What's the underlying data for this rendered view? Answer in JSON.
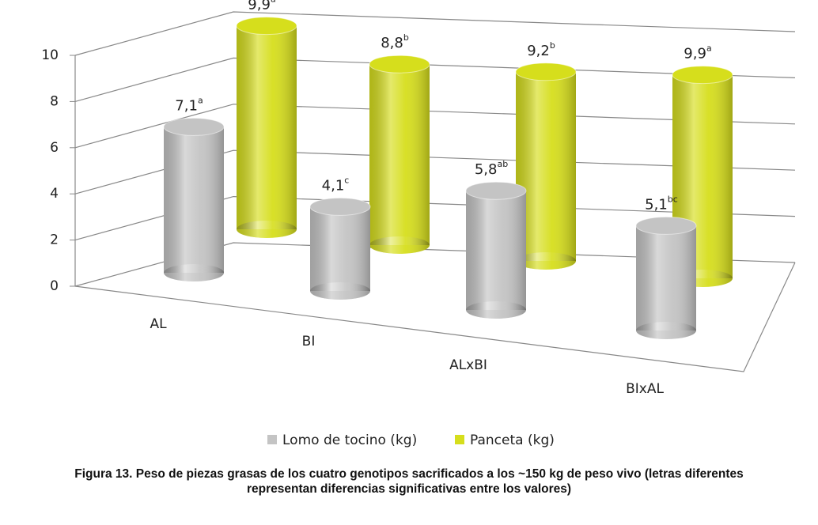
{
  "chart_data": {
    "type": "bar",
    "categories": [
      "AL",
      "BI",
      "ALxBI",
      "BIxAL"
    ],
    "series": [
      {
        "name": "Lomo de tocino (kg)",
        "color": "#c4c4c4",
        "values": [
          7.1,
          4.1,
          5.8,
          5.1
        ],
        "value_labels": [
          "7,1",
          "4,1",
          "5,8",
          "5,1"
        ],
        "letters": [
          "a",
          "c",
          "ab",
          "bc"
        ]
      },
      {
        "name": "Panceta (kg)",
        "color": "#d6de1c",
        "values": [
          9.9,
          8.8,
          9.2,
          9.9
        ],
        "value_labels": [
          "9,9",
          "8,8",
          "9,2",
          "9,9"
        ],
        "letters": [
          "a",
          "b",
          "b",
          "a"
        ]
      }
    ],
    "ylim": [
      0,
      10
    ],
    "yticks": [
      0,
      2,
      4,
      6,
      8,
      10
    ],
    "grid": true,
    "caption": "Figura 13. Peso de piezas grasas de los cuatro genotipos sacrificados a los ~150 kg de peso vivo (letras diferentes representan diferencias significativas entre los valores)"
  }
}
